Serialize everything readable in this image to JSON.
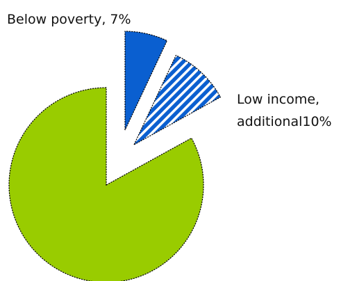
{
  "chart_data": {
    "type": "pie",
    "title": "",
    "slices": [
      {
        "key": "below_poverty",
        "value": 7,
        "label_lines": [
          "Below poverty, 7%"
        ],
        "color": "#0a5fd0",
        "pattern": "solid"
      },
      {
        "key": "low_income",
        "value": 10,
        "label_lines": [
          "Low income,",
          "additional10%"
        ],
        "color": "#0a5fd0",
        "pattern": "diagonal-stripes"
      },
      {
        "key": "other",
        "value": 83,
        "label_lines": [],
        "color": "#99cc00",
        "pattern": "solid"
      }
    ],
    "legend": "none"
  }
}
